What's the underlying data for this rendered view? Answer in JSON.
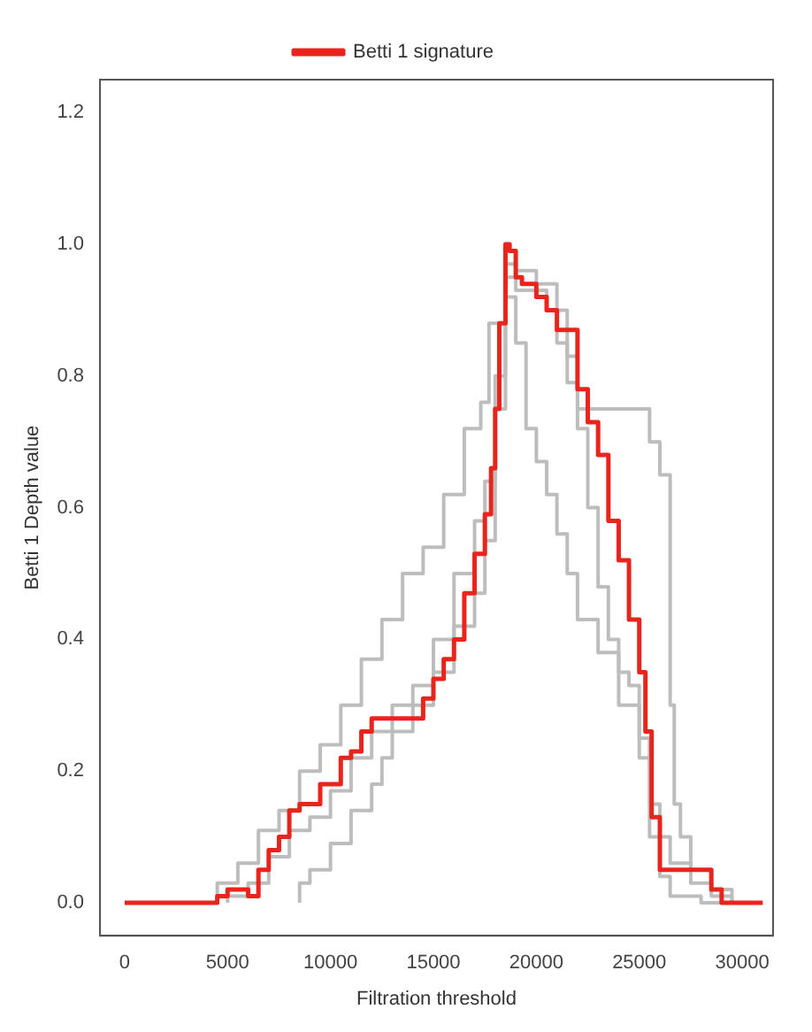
{
  "chart_data": {
    "type": "step",
    "xlabel": "Filtration threshold",
    "ylabel": "Betti 1 Depth value",
    "xlim": [
      -1200,
      31500
    ],
    "xticks": [
      0,
      5000,
      10000,
      15000,
      20000,
      25000,
      30000
    ],
    "ylim": [
      -0.05,
      1.25
    ],
    "yticks": [
      {
        "value": 0,
        "label": "0.0"
      },
      0.2,
      0.4,
      0.6,
      0.8,
      {
        "value": 1,
        "label": "1.0"
      },
      1.2
    ],
    "grid": false,
    "legend": "top",
    "series": [
      {
        "color": "#bdbdbd",
        "x": [
          4500,
          5500,
          6500,
          7500,
          8500,
          9500,
          10500,
          11500,
          12500,
          13500,
          14500,
          15500,
          16500,
          17300,
          17700,
          18500,
          19000,
          20000,
          21000,
          21500,
          22000,
          22500,
          25500,
          26000,
          26500,
          26700,
          27000,
          27500,
          28500,
          29500,
          30500
        ],
        "values": [
          0,
          0.03,
          0.06,
          0.11,
          0.14,
          0.2,
          0.24,
          0.3,
          0.37,
          0.43,
          0.5,
          0.54,
          0.62,
          0.72,
          0.76,
          0.88,
          0.97,
          0.96,
          0.94,
          0.85,
          0.79,
          0.75,
          0.75,
          0.7,
          0.65,
          0.3,
          0.15,
          0.1,
          0.05,
          0.02,
          0
        ]
      },
      {
        "color": "#bdbdbd",
        "x": [
          5000,
          6000,
          7000,
          8000,
          9000,
          10000,
          11000,
          12000,
          13000,
          14000,
          15000,
          16000,
          17000,
          17500,
          18000,
          18500,
          19000,
          19500,
          20000,
          20500,
          21000,
          21500,
          22000,
          23000,
          24000,
          24500,
          25000,
          25500,
          26000,
          26500,
          28000,
          29000
        ],
        "values": [
          0,
          0.01,
          0.03,
          0.07,
          0.11,
          0.13,
          0.17,
          0.22,
          0.26,
          0.3,
          0.33,
          0.4,
          0.5,
          0.58,
          0.64,
          0.8,
          0.92,
          0.85,
          0.72,
          0.67,
          0.62,
          0.56,
          0.5,
          0.43,
          0.38,
          0.35,
          0.33,
          0.25,
          0.1,
          0.04,
          0.01,
          0
        ]
      },
      {
        "color": "#bdbdbd",
        "x": [
          8500,
          9000,
          10000,
          11000,
          12000,
          12500,
          13000,
          14000,
          15000,
          16000,
          17000,
          17500,
          18000,
          18500,
          19000,
          19500,
          20500,
          21500,
          22000,
          22500,
          23000,
          23500,
          24000,
          25000,
          25500,
          26000,
          26500,
          27500,
          28500,
          29500,
          30500
        ],
        "values": [
          0,
          0.03,
          0.05,
          0.09,
          0.14,
          0.18,
          0.22,
          0.26,
          0.3,
          0.35,
          0.42,
          0.47,
          0.55,
          0.75,
          0.95,
          0.93,
          0.93,
          0.9,
          0.83,
          0.72,
          0.6,
          0.48,
          0.4,
          0.3,
          0.22,
          0.15,
          0.1,
          0.06,
          0.03,
          0.01,
          0
        ]
      },
      {
        "name": "Betti 1 signature",
        "color": "#e8241c",
        "x": [
          0,
          4500,
          5000,
          6000,
          6500,
          7000,
          7500,
          8000,
          8500,
          9500,
          10500,
          11000,
          11500,
          12000,
          12500,
          14500,
          15000,
          15500,
          16000,
          16500,
          17000,
          17500,
          17800,
          18000,
          18200,
          18500,
          18700,
          19000,
          19300,
          20000,
          20500,
          21000,
          21500,
          22000,
          22500,
          23000,
          23500,
          24000,
          24500,
          25000,
          25300,
          25600,
          26000,
          26500,
          28500,
          29000,
          29500,
          31000
        ],
        "values": [
          0,
          0,
          0.01,
          0.02,
          0.01,
          0.05,
          0.08,
          0.1,
          0.14,
          0.15,
          0.18,
          0.22,
          0.23,
          0.26,
          0.28,
          0.28,
          0.31,
          0.34,
          0.37,
          0.4,
          0.47,
          0.53,
          0.59,
          0.66,
          0.75,
          0.88,
          1,
          0.99,
          0.95,
          0.94,
          0.92,
          0.9,
          0.87,
          0.87,
          0.78,
          0.73,
          0.68,
          0.58,
          0.52,
          0.43,
          0.35,
          0.26,
          0.13,
          0.05,
          0.05,
          0.02,
          0,
          0
        ]
      }
    ]
  }
}
